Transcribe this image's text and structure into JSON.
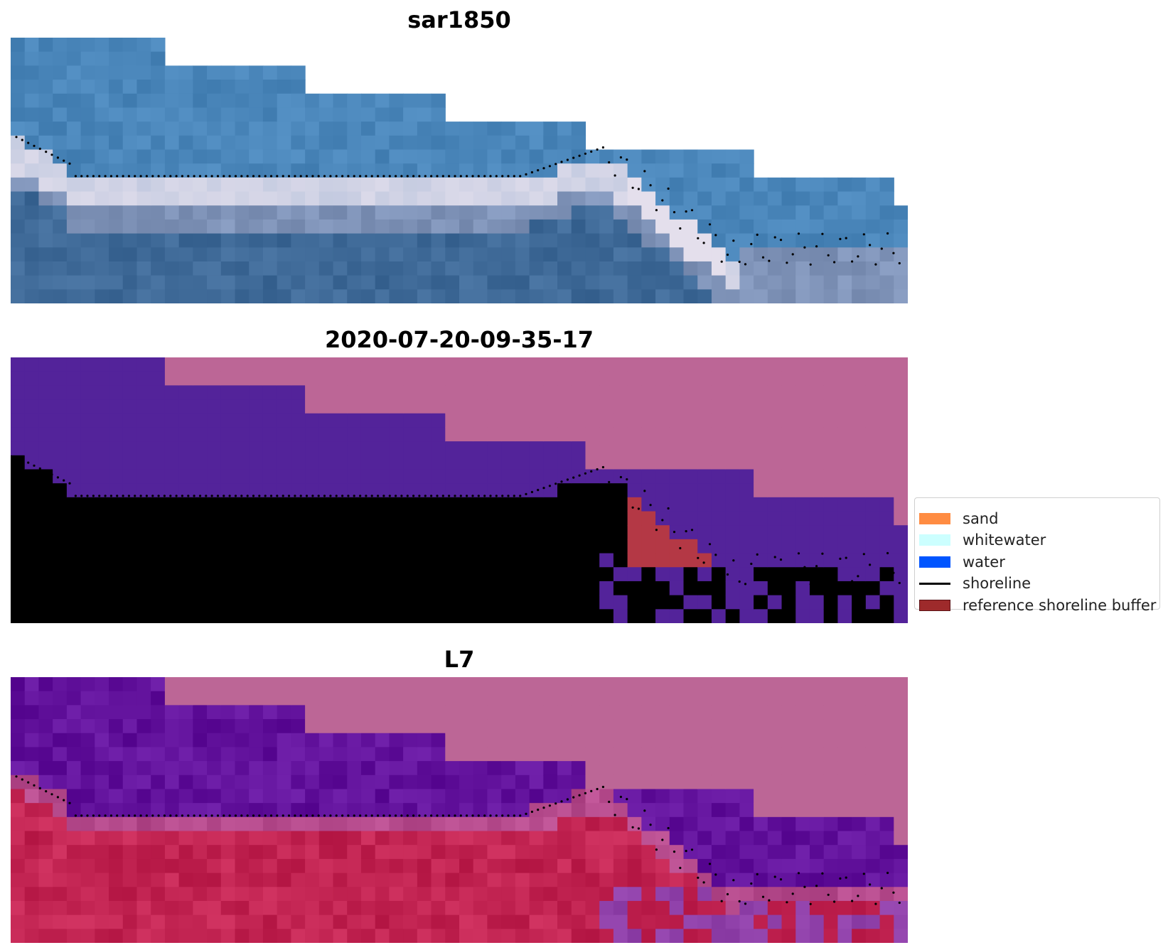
{
  "panels": [
    {
      "title": "sar1850",
      "style": "rgb"
    },
    {
      "title": "2020-07-20-09-35-17",
      "style": "classified"
    },
    {
      "title": "L7",
      "style": "index"
    }
  ],
  "legend": {
    "items": [
      {
        "label": "sand",
        "kind": "patch",
        "color": "#FF8C42"
      },
      {
        "label": "whitewater",
        "kind": "patch",
        "color": "#CCFFFF"
      },
      {
        "label": "water",
        "kind": "patch",
        "color": "#0055FF"
      },
      {
        "label": "shoreline",
        "kind": "line",
        "color": "#000000"
      },
      {
        "label": "reference shoreline buffer",
        "kind": "patch",
        "color": "#9E2A2B"
      }
    ],
    "placement": "center-right"
  },
  "chart_data": {
    "type": "heatmap",
    "grid": false,
    "axes_visible": false,
    "images": [
      "sar1850",
      "2020-07-20-09-35-17",
      "L7"
    ],
    "legend_entries": [
      "sand",
      "whitewater",
      "water",
      "shoreline",
      "reference shoreline buffer"
    ],
    "nodata_color": "#BC6696",
    "colors": {
      "water_class": "#53239A",
      "buffer_class": "#B43845",
      "sar_water": "#4A86BA",
      "sar_whitewater": "#E8E2EE",
      "index_water": "#62129C",
      "index_land": "#C22452"
    }
  }
}
